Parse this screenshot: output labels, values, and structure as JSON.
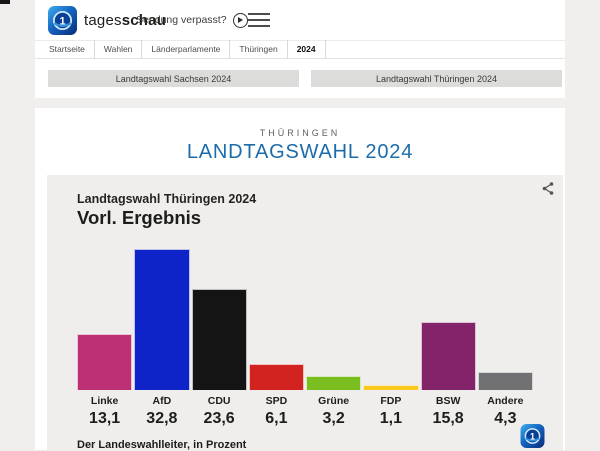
{
  "header": {
    "brand_regular": "tages",
    "brand_bold": "schau",
    "catchup_label": "Sendung verpasst?"
  },
  "breadcrumb": {
    "items": [
      "Startseite",
      "Wahlen",
      "Länderparlamente",
      "Thüringen",
      "2024"
    ]
  },
  "tabs": [
    {
      "label": "Landtagswahl Sachsen 2024"
    },
    {
      "label": "Landtagswahl Thüringen 2024"
    }
  ],
  "page": {
    "kicker": "THÜRINGEN",
    "title": "LANDTAGSWAHL 2024"
  },
  "icons": {
    "brand": "tagesschau-globe-icon",
    "catchup": "play-circle-icon",
    "menu": "hamburger-menu-icon",
    "share": "share-icon",
    "chart_watermark": "tagesschau-globe-icon"
  },
  "colors": {
    "accent_blue": "#1c6cab",
    "page_bg": "#f0efed",
    "chart_bg": "#efeeec",
    "tab_bg": "#dcdcdb"
  },
  "chart_data": {
    "type": "bar",
    "title": "Landtagswahl Thüringen 2024",
    "subtitle": "Vorl. Ergebnis",
    "source": "Der Landeswahlleiter, in Prozent",
    "unit": "percent",
    "categories": [
      "Linke",
      "AfD",
      "CDU",
      "SPD",
      "Grüne",
      "FDP",
      "BSW",
      "Andere"
    ],
    "values": [
      13.1,
      32.8,
      23.6,
      6.1,
      3.2,
      1.1,
      15.8,
      4.3
    ],
    "value_labels": [
      "13,1",
      "32,8",
      "23,6",
      "6,1",
      "3,2",
      "1,1",
      "15,8",
      "4,3"
    ],
    "colors": [
      "#be3075",
      "#0e23c8",
      "#141414",
      "#d22321",
      "#7abe20",
      "#fac91e",
      "#83246a",
      "#717173"
    ],
    "ylim": [
      0,
      35
    ],
    "grid": false,
    "legend": "none"
  }
}
